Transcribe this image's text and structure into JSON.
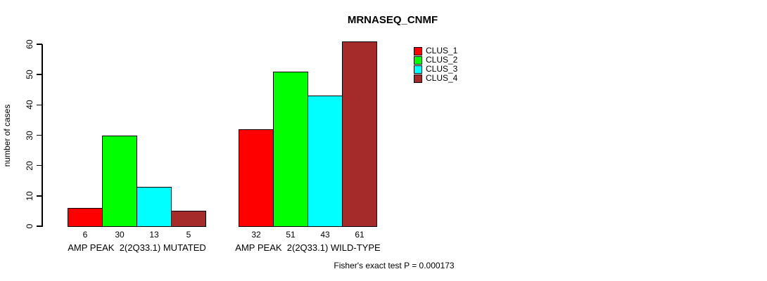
{
  "title": "MRNASEQ_CNMF",
  "ylabel": "number of cases",
  "footnote": "Fisher's exact test P = 0.000173",
  "chart_data": {
    "type": "bar",
    "title": "MRNASEQ_CNMF",
    "xlabel": "",
    "ylabel": "number of cases",
    "ylim": [
      0,
      60
    ],
    "yticks": [
      0,
      10,
      20,
      30,
      40,
      50,
      60
    ],
    "grid": false,
    "legend_position": "top-right",
    "bar_value_labels_shown": true,
    "series": [
      {
        "name": "CLUS_1",
        "color": "#FF0000"
      },
      {
        "name": "CLUS_2",
        "color": "#00FF00"
      },
      {
        "name": "CLUS_3",
        "color": "#00FFFF"
      },
      {
        "name": "CLUS_4",
        "color": "#A52A2A"
      }
    ],
    "groups": [
      {
        "label": "AMP PEAK  2(2Q33.1) MUTATED",
        "values": [
          6,
          30,
          13,
          5
        ]
      },
      {
        "label": "AMP PEAK  2(2Q33.1) WILD-TYPE",
        "values": [
          32,
          51,
          43,
          61
        ]
      }
    ],
    "annotation": "Fisher's exact test P = 0.000173"
  }
}
